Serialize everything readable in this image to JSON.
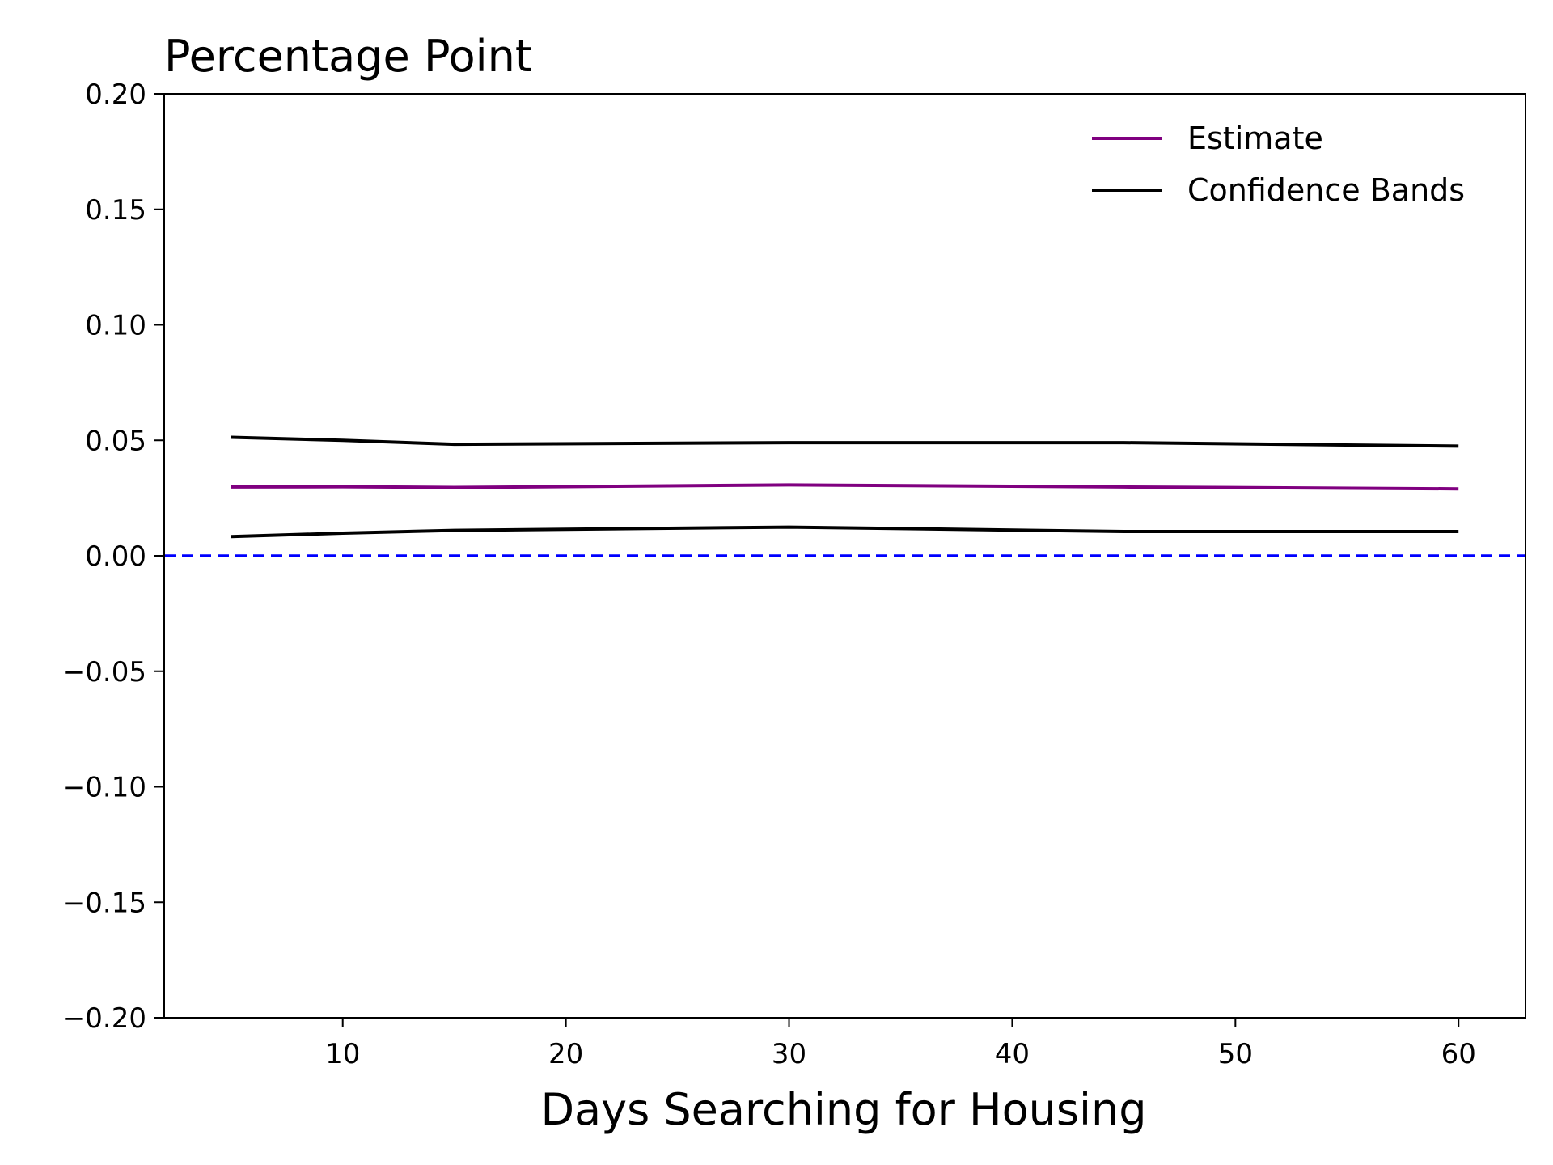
{
  "chart_data": {
    "type": "line",
    "title": "Percentage Point",
    "xlabel": "Days Searching for Housing",
    "ylabel": "",
    "xlim": [
      2,
      63
    ],
    "ylim": [
      -0.2,
      0.2
    ],
    "xticks": [
      10,
      20,
      30,
      40,
      50,
      60
    ],
    "xtick_labels": [
      "10",
      "20",
      "30",
      "40",
      "50",
      "60"
    ],
    "yticks": [
      0.2,
      0.15,
      0.1,
      0.05,
      0.0,
      -0.05,
      -0.1,
      -0.15,
      -0.2
    ],
    "ytick_labels": [
      "0.20",
      "0.15",
      "0.10",
      "0.05",
      "0.00",
      "−0.05",
      "−0.10",
      "−0.15",
      "−0.20"
    ],
    "grid": false,
    "legend_position": "top-right",
    "legend": [
      {
        "label": "Estimate",
        "color": "#800080"
      },
      {
        "label": "Confidence Bands",
        "color": "#000000"
      }
    ],
    "x": [
      5,
      10,
      15,
      30,
      45,
      60
    ],
    "series": [
      {
        "name": "Estimate",
        "color": "#800080",
        "values": [
          0.0298,
          0.0299,
          0.0296,
          0.0307,
          0.0298,
          0.029
        ]
      },
      {
        "name": "Confidence Bands",
        "color": "#000000",
        "values": [
          0.0513,
          0.05,
          0.0483,
          0.049,
          0.049,
          0.0475
        ]
      },
      {
        "name": "Confidence Bands",
        "color": "#000000",
        "values": [
          0.0083,
          0.0098,
          0.011,
          0.0124,
          0.0105,
          0.0105
        ]
      }
    ],
    "reference_line": {
      "y": 0.0,
      "color": "#0000ff",
      "style": "dashed"
    }
  }
}
